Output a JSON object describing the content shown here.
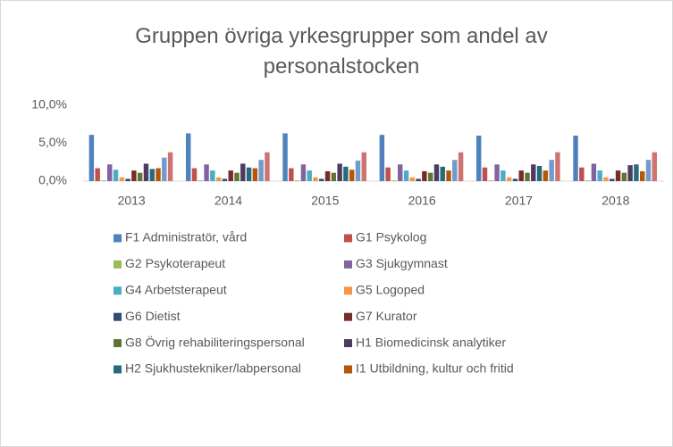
{
  "chart_data": {
    "type": "bar",
    "title": "Gruppen övriga yrkesgrupper som andel av personalstocken",
    "categories": [
      "2013",
      "2014",
      "2015",
      "2016",
      "2017",
      "2018"
    ],
    "ylim": [
      0,
      10
    ],
    "yticks": [
      {
        "value": 0,
        "label": "0,0%"
      },
      {
        "value": 5,
        "label": "5,0%"
      },
      {
        "value": 10,
        "label": "10,0%"
      }
    ],
    "grid": false,
    "series": [
      {
        "name": "F1 Administratör, vård",
        "color": "#4f81bd",
        "values": [
          6.1,
          6.3,
          6.3,
          6.1,
          6.0,
          6.0
        ]
      },
      {
        "name": "G1 Psykolog",
        "color": "#c0504d",
        "values": [
          1.7,
          1.7,
          1.7,
          1.8,
          1.8,
          1.8
        ]
      },
      {
        "name": "G2 Psykoterapeut",
        "color": "#9bbb59",
        "values": [
          0.1,
          0.1,
          0.1,
          0.1,
          0.1,
          0.1
        ]
      },
      {
        "name": "G3 Sjukgymnast",
        "color": "#8064a2",
        "values": [
          2.2,
          2.2,
          2.2,
          2.2,
          2.2,
          2.3
        ]
      },
      {
        "name": "G4 Arbetsterapeut",
        "color": "#4bacc6",
        "values": [
          1.5,
          1.4,
          1.4,
          1.4,
          1.4,
          1.4
        ]
      },
      {
        "name": "G5 Logoped",
        "color": "#f79646",
        "values": [
          0.5,
          0.5,
          0.5,
          0.5,
          0.5,
          0.5
        ]
      },
      {
        "name": "G6 Dietist",
        "color": "#2c4d75",
        "values": [
          0.3,
          0.3,
          0.3,
          0.3,
          0.3,
          0.3
        ]
      },
      {
        "name": "G7 Kurator",
        "color": "#772c2a",
        "values": [
          1.4,
          1.4,
          1.3,
          1.3,
          1.4,
          1.4
        ]
      },
      {
        "name": "G8 Övrig rehabiliteringspersonal",
        "color": "#5f7530",
        "values": [
          1.1,
          1.1,
          1.1,
          1.1,
          1.1,
          1.1
        ]
      },
      {
        "name": "H1 Biomedicinsk analytiker",
        "color": "#4d3b62",
        "values": [
          2.3,
          2.3,
          2.3,
          2.2,
          2.2,
          2.1
        ]
      },
      {
        "name": "H2 Sjukhustekniker/labpersonal",
        "color": "#276a7c",
        "values": [
          1.6,
          1.8,
          1.9,
          1.9,
          2.0,
          2.2
        ]
      },
      {
        "name": "I1 Utbildning, kultur och fritid",
        "color": "#b65708",
        "values": [
          1.7,
          1.7,
          1.5,
          1.4,
          1.4,
          1.3
        ]
      },
      {
        "color": "#729aca",
        "values": [
          3.1,
          2.8,
          2.7,
          2.8,
          2.8,
          2.8
        ]
      },
      {
        "color": "#cd7371",
        "values": [
          3.8,
          3.8,
          3.8,
          3.8,
          3.8,
          3.8
        ]
      }
    ]
  }
}
